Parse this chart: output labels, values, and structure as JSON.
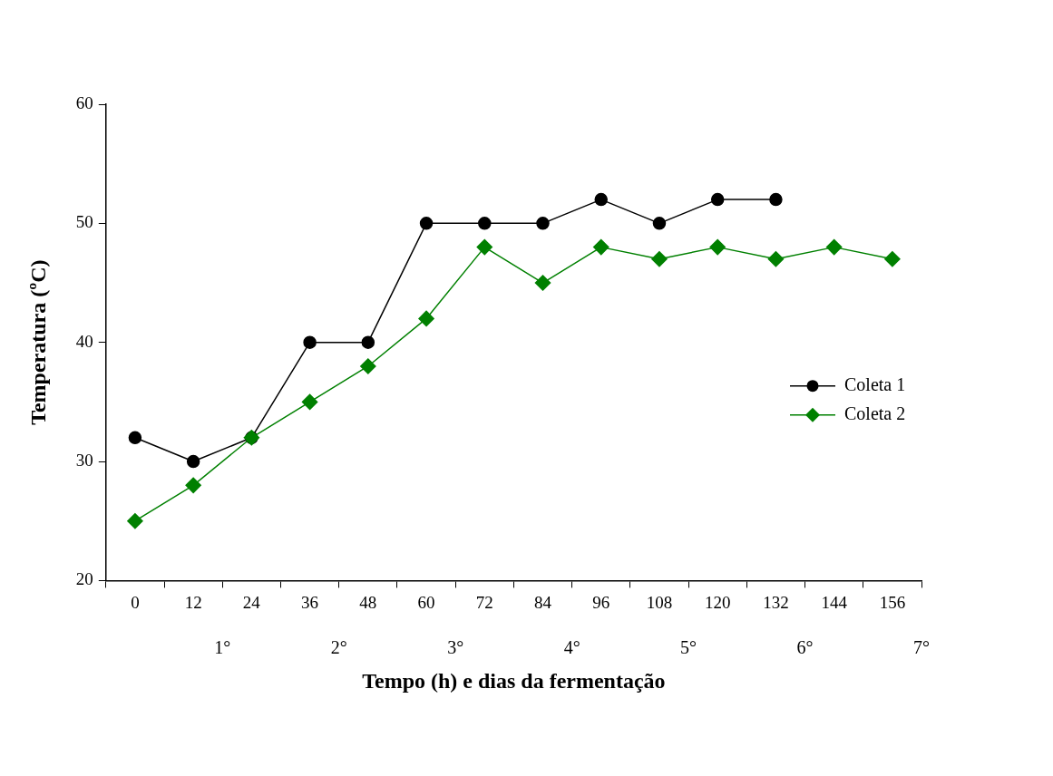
{
  "chart_data": {
    "type": "line",
    "xlabel": "Tempo (h) e dias da fermentação",
    "ylabel": "Temperatura (ºC)",
    "categories": [
      "0",
      "12",
      "24",
      "36",
      "48",
      "60",
      "72",
      "84",
      "96",
      "108",
      "120",
      "132",
      "144",
      "156"
    ],
    "series": [
      {
        "name": "Coleta 1",
        "color": "#000000",
        "marker": "circle",
        "values": [
          32,
          30,
          32,
          40,
          40,
          50,
          50,
          50,
          52,
          50,
          52,
          52,
          null,
          null
        ]
      },
      {
        "name": "Coleta 2",
        "color": "#008000",
        "marker": "diamond",
        "values": [
          25,
          28,
          32,
          35,
          38,
          42,
          48,
          45,
          48,
          47,
          48,
          47,
          48,
          47
        ]
      }
    ],
    "ylim": [
      20,
      60
    ],
    "yticks": [
      20,
      30,
      40,
      50,
      60
    ],
    "grid": false,
    "legend": "right",
    "line_style": "solid",
    "annotations": [
      "1°",
      "2°",
      "3°",
      "4°",
      "5°",
      "6°",
      "7°"
    ]
  }
}
